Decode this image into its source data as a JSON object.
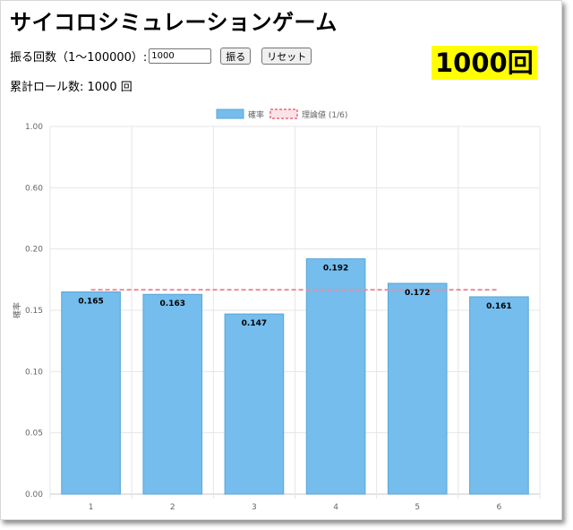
{
  "header": {
    "title": "サイコロシミュレーションゲーム"
  },
  "controls": {
    "label": "振る回数（1〜100000）:",
    "input_value": "1000",
    "roll_label": "振る",
    "reset_label": "リセット"
  },
  "big_count": "1000回",
  "total_rolls": "累計ロール数: 1000 回",
  "chart_data": {
    "type": "bar",
    "categories": [
      "1",
      "2",
      "3",
      "4",
      "5",
      "6"
    ],
    "series": [
      {
        "name": "確率",
        "values": [
          0.165,
          0.163,
          0.147,
          0.192,
          0.172,
          0.161
        ],
        "color": "#74bdec"
      },
      {
        "name": "理論値 (1/6)",
        "values": [
          0.1667,
          0.1667,
          0.1667,
          0.1667,
          0.1667,
          0.1667
        ],
        "color": "#ef8a9a",
        "style": "dashed-line"
      }
    ],
    "data_labels": [
      "0.165",
      "0.163",
      "0.147",
      "0.192",
      "0.172",
      "0.161"
    ],
    "y_ticks": [
      "0.00",
      "0.05",
      "0.10",
      "0.15",
      "0.20",
      "0.60",
      "1.00"
    ],
    "ylabel": "確率",
    "xlabel": "",
    "legend_position": "top",
    "grid": true
  }
}
